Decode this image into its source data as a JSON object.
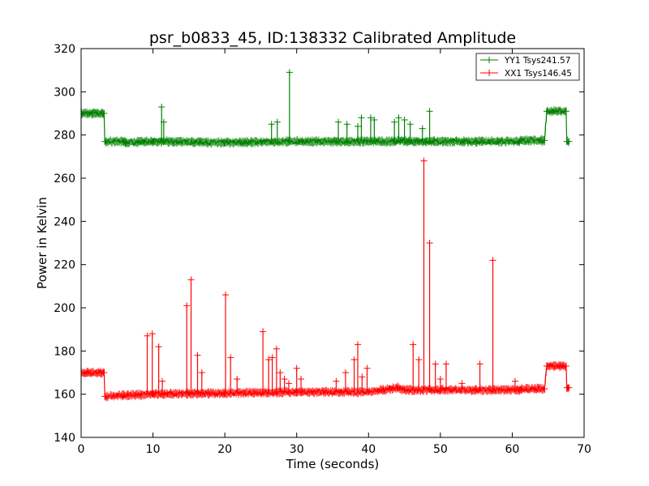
{
  "chart_data": {
    "type": "line",
    "title": "psr_b0833_45, ID:138332 Calibrated Amplitude",
    "xlabel": "Time (seconds)",
    "ylabel": "Power in Kelvin",
    "xlim": [
      0,
      70
    ],
    "ylim": [
      140,
      320
    ],
    "xticks": [
      0,
      10,
      20,
      30,
      40,
      50,
      60,
      70
    ],
    "yticks": [
      140,
      160,
      180,
      200,
      220,
      240,
      260,
      280,
      300,
      320
    ],
    "grid": false,
    "legend": "top-right",
    "series": [
      {
        "name": "YY1 Tsys241.57",
        "color": "#008000",
        "x": [
          0,
          3.2,
          3.3,
          6,
          6.2,
          10,
          11.2,
          11.5,
          20,
          29,
          35.5,
          37,
          40.5,
          41,
          43.5,
          44.5,
          45.5,
          48,
          48.5,
          55,
          58,
          61,
          61.2,
          64.5,
          64.8,
          67.5,
          67.6,
          67.9
        ],
        "y": [
          290,
          290,
          277,
          277,
          276.5,
          277,
          277,
          277,
          276.5,
          277,
          277,
          277,
          277,
          277,
          277,
          277.5,
          277,
          277,
          277,
          277,
          277,
          277,
          277.5,
          277.5,
          291,
          291,
          277,
          277
        ],
        "spikes": [
          {
            "x": 11.2,
            "y": 293
          },
          {
            "x": 11.5,
            "y": 286
          },
          {
            "x": 26.5,
            "y": 285
          },
          {
            "x": 27.3,
            "y": 286
          },
          {
            "x": 29,
            "y": 309
          },
          {
            "x": 35.8,
            "y": 286
          },
          {
            "x": 37,
            "y": 285
          },
          {
            "x": 38.5,
            "y": 284
          },
          {
            "x": 39,
            "y": 288
          },
          {
            "x": 40.3,
            "y": 288
          },
          {
            "x": 40.8,
            "y": 287
          },
          {
            "x": 43.6,
            "y": 286
          },
          {
            "x": 44.2,
            "y": 288
          },
          {
            "x": 45,
            "y": 287
          },
          {
            "x": 45.8,
            "y": 285
          },
          {
            "x": 47.5,
            "y": 283
          },
          {
            "x": 48.5,
            "y": 291
          }
        ]
      },
      {
        "name": "XX1 Tsys146.45",
        "color": "#ff0000",
        "x": [
          0,
          3.2,
          3.3,
          6,
          10,
          20,
          30,
          40,
          44,
          45,
          50,
          55,
          61,
          61.2,
          64.5,
          64.8,
          67.5,
          67.6,
          67.9
        ],
        "y": [
          170,
          170,
          159,
          159.5,
          160,
          160.5,
          161,
          161,
          163,
          162,
          162,
          162,
          162,
          162.5,
          162.5,
          173,
          173,
          163,
          163
        ],
        "spikes": [
          {
            "x": 9.2,
            "y": 187
          },
          {
            "x": 9.9,
            "y": 188
          },
          {
            "x": 10.8,
            "y": 182
          },
          {
            "x": 11.3,
            "y": 166
          },
          {
            "x": 14.7,
            "y": 201
          },
          {
            "x": 15.3,
            "y": 213
          },
          {
            "x": 16.2,
            "y": 178
          },
          {
            "x": 16.8,
            "y": 170
          },
          {
            "x": 20.1,
            "y": 206
          },
          {
            "x": 20.8,
            "y": 177
          },
          {
            "x": 21.7,
            "y": 167
          },
          {
            "x": 25.3,
            "y": 189
          },
          {
            "x": 26.1,
            "y": 176
          },
          {
            "x": 26.6,
            "y": 177
          },
          {
            "x": 27.2,
            "y": 181
          },
          {
            "x": 27.7,
            "y": 170
          },
          {
            "x": 28.3,
            "y": 167
          },
          {
            "x": 28.9,
            "y": 165
          },
          {
            "x": 30,
            "y": 172
          },
          {
            "x": 30.6,
            "y": 167
          },
          {
            "x": 35.5,
            "y": 166
          },
          {
            "x": 36.8,
            "y": 170
          },
          {
            "x": 38,
            "y": 176
          },
          {
            "x": 38.5,
            "y": 183
          },
          {
            "x": 39.1,
            "y": 168
          },
          {
            "x": 39.8,
            "y": 172
          },
          {
            "x": 46.2,
            "y": 183
          },
          {
            "x": 47,
            "y": 176
          },
          {
            "x": 47.7,
            "y": 268
          },
          {
            "x": 48.5,
            "y": 230
          },
          {
            "x": 49.3,
            "y": 174
          },
          {
            "x": 50,
            "y": 167
          },
          {
            "x": 50.8,
            "y": 174
          },
          {
            "x": 53,
            "y": 165
          },
          {
            "x": 55.5,
            "y": 174
          },
          {
            "x": 57.3,
            "y": 222
          },
          {
            "x": 60.4,
            "y": 166
          }
        ]
      }
    ]
  }
}
